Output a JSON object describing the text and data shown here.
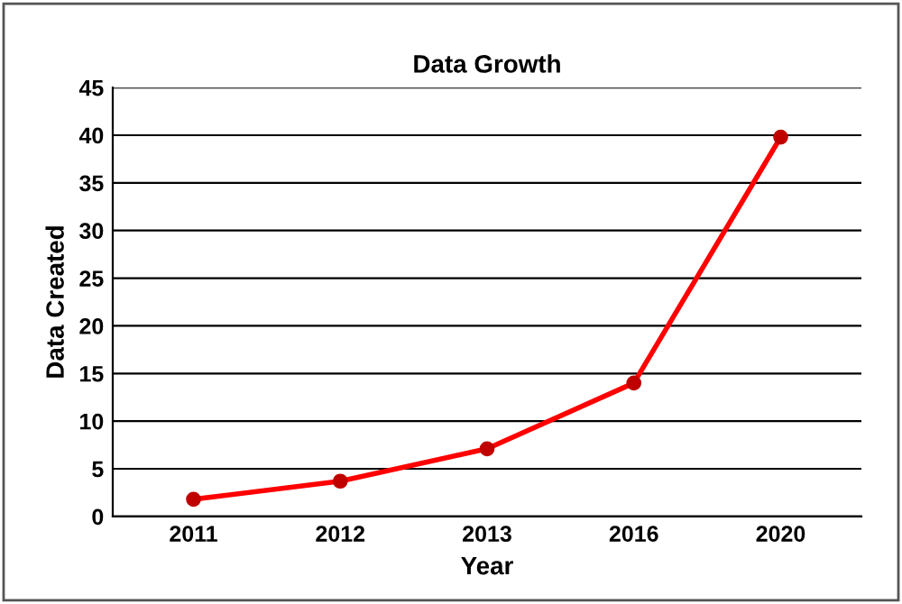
{
  "chart_data": {
    "type": "line",
    "title": "Data Growth",
    "xlabel": "Year",
    "ylabel": "Data Created",
    "categories": [
      "2011",
      "2012",
      "2013",
      "2016",
      "2020"
    ],
    "series": [
      {
        "color": "#ff0000",
        "values": [
          1.8,
          3.7,
          7.1,
          14,
          39.8
        ]
      }
    ],
    "ylim": [
      0,
      45
    ],
    "yticks": [
      0,
      5,
      10,
      15,
      20,
      25,
      30,
      35,
      40,
      45
    ],
    "grid": "y",
    "marker": "circle",
    "line_style": "solid"
  }
}
